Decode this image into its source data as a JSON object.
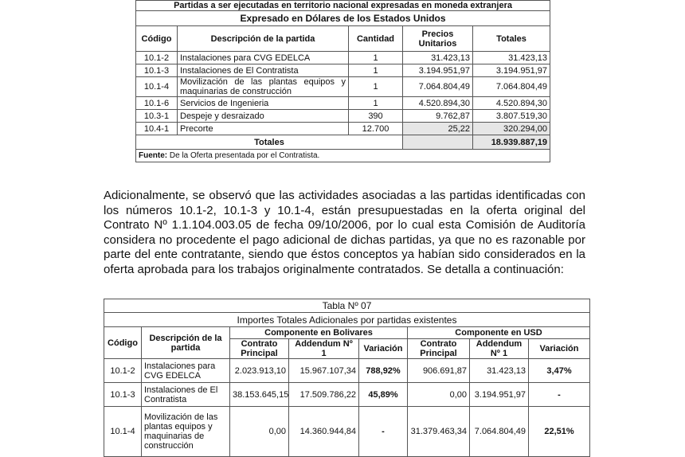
{
  "table1": {
    "title": "Partidas a ser ejecutadas en territorio nacional expresadas en moneda extranjera",
    "subtitle": "Expresado en Dólares de los Estados Unidos",
    "headers": [
      "Código",
      "Descripción de la partida",
      "Cantidad",
      "Precios Unitarios",
      "Totales"
    ],
    "rows": [
      {
        "codigo": "10.1-2",
        "descripcion": "Instalaciones para CVG EDELCA",
        "cantidad": "1",
        "precio": "31.423,13",
        "total": "31.423,13"
      },
      {
        "codigo": "10.1-3",
        "descripcion": "Instalaciones de El Contratista",
        "cantidad": "1",
        "precio": "3.194.951,97",
        "total": "3.194.951,97"
      },
      {
        "codigo": "10.1-4",
        "descripcion": "Movilización de las plantas equipos y maquinarias de construcción",
        "cantidad": "1",
        "precio": "7.064.804,49",
        "total": "7.064.804,49"
      },
      {
        "codigo": "10.1-6",
        "descripcion": "Servicios de Ingenieria",
        "cantidad": "1",
        "precio": "4.520.894,30",
        "total": "4.520.894,30"
      },
      {
        "codigo": "10.3-1",
        "descripcion": "Despeje y desraizado",
        "cantidad": "390",
        "precio": "9.762,87",
        "total": "3.807.519,30"
      },
      {
        "codigo": "10.4-1",
        "descripcion": "Precorte",
        "cantidad": "12.700",
        "precio": "25,22",
        "total": "320.294,00"
      }
    ],
    "totals_label": "Totales",
    "totals_value": "18.939.887,19",
    "source_label": "Fuente:",
    "source_text": " De la Oferta presentada por el Contratista."
  },
  "paragraph": "Adicionalmente, se observó que las actividades asociadas a las partidas identificadas con los números 10.1-2, 10.1-3 y 10.1-4, están presupuestadas en la oferta original del Contrato Nº 1.1.104.003.05 de fecha 09/10/2006, por lo cual esta Comisión de Auditoría considera no procedente el pago adicional de dichas partidas, ya que no es razonable por parte del ente contratante, siendo que éstos conceptos ya habían sido considerados en la oferta aprobada para los trabajos originalmente contratados. Se detalla a continuación:",
  "table2": {
    "title": "Tabla Nº 07",
    "subtitle": "Importes Totales Adicionales por partidas existentes",
    "col_codigo": "Código",
    "col_descripcion": "Descripción de la partida",
    "group_bs": "Componente en Bolivares",
    "group_usd": "Componente en USD",
    "sub_contrato": "Contrato Principal",
    "sub_addendum": "Addendum Nº 1",
    "sub_variacion": "Variación",
    "rows": [
      {
        "codigo": "10.1-2",
        "descripcion": "Instalaciones para CVG EDELCA",
        "bs_contrato": "2.023.913,10",
        "bs_addendum": "15.967.107,34",
        "bs_variacion": "788,92%",
        "usd_contrato": "906.691,87",
        "usd_addendum": "31.423,13",
        "usd_variacion": "3,47%"
      },
      {
        "codigo": "10.1-3",
        "descripcion": "Instalaciones de El Contratista",
        "bs_contrato": "38.153.645,15",
        "bs_addendum": "17.509.786,22",
        "bs_variacion": "45,89%",
        "usd_contrato": "0,00",
        "usd_addendum": "3.194.951,97",
        "usd_variacion": "-"
      },
      {
        "codigo": "10.1-4",
        "descripcion": "Movilización de las plantas equipos y maquinarias de construcción",
        "bs_contrato": "0,00",
        "bs_addendum": "14.360.944,84",
        "bs_variacion": "-",
        "usd_contrato": "31.379.463,34",
        "usd_addendum": "7.064.804,49",
        "usd_variacion": "22,51%"
      }
    ]
  }
}
